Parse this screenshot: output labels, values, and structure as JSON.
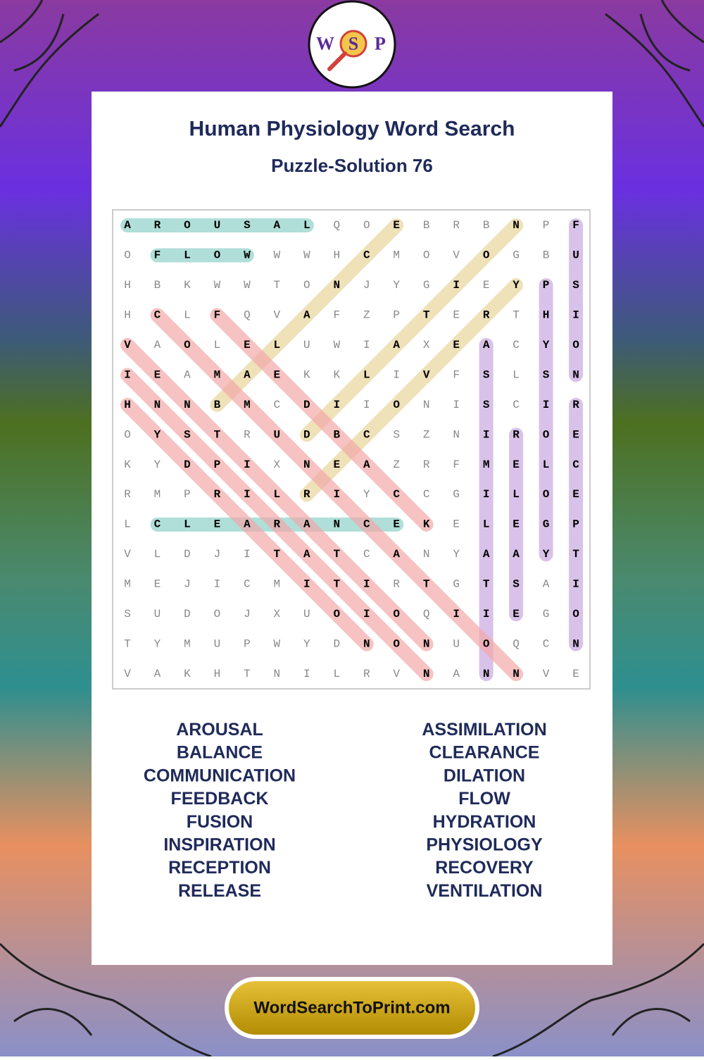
{
  "logo": {
    "letters": [
      "W",
      "S",
      "P"
    ]
  },
  "header": {
    "title": "Human Physiology Word Search",
    "subtitle": "Puzzle-Solution 76"
  },
  "grid": {
    "rows": [
      "AROUSALQOEBRBNPF",
      "OFLOWWWHCMOVOGBU",
      "HBKWWTONJYGIEYPS",
      "HCLFQVAFZPTERTHI",
      "VAOLELUWIAXEACYO",
      "IEAMAEKKLIVFSLSN",
      "HNNBMCDIIONISCIR",
      "OYSTRUDBCSZNIROE",
      "KYDPIXNEAZRFMELC",
      "RMPRILRIYCCGILOE",
      "LCLEARANCEKELEGP",
      "VLDJITATCANYAAYT",
      "MEJICMITIRTGTSAI",
      "SUDOJXUOIOQIIEGO",
      "TYMUPWYDNONUOQCN",
      "VAKHTNILRVNANNVE"
    ]
  },
  "words": {
    "left": [
      "AROUSAL",
      "BALANCE",
      "COMMUNICATION",
      "FEEDBACK",
      "FUSION",
      "INSPIRATION",
      "RECEPTION",
      "RELEASE"
    ],
    "right": [
      "ASSIMILATION",
      "CLEARANCE",
      "DILATION",
      "FLOW",
      "HYDRATION",
      "PHYSIOLOGY",
      "RECOVERY",
      "VENTILATION"
    ]
  },
  "footer": {
    "site": "WordSearchToPrint.com"
  }
}
